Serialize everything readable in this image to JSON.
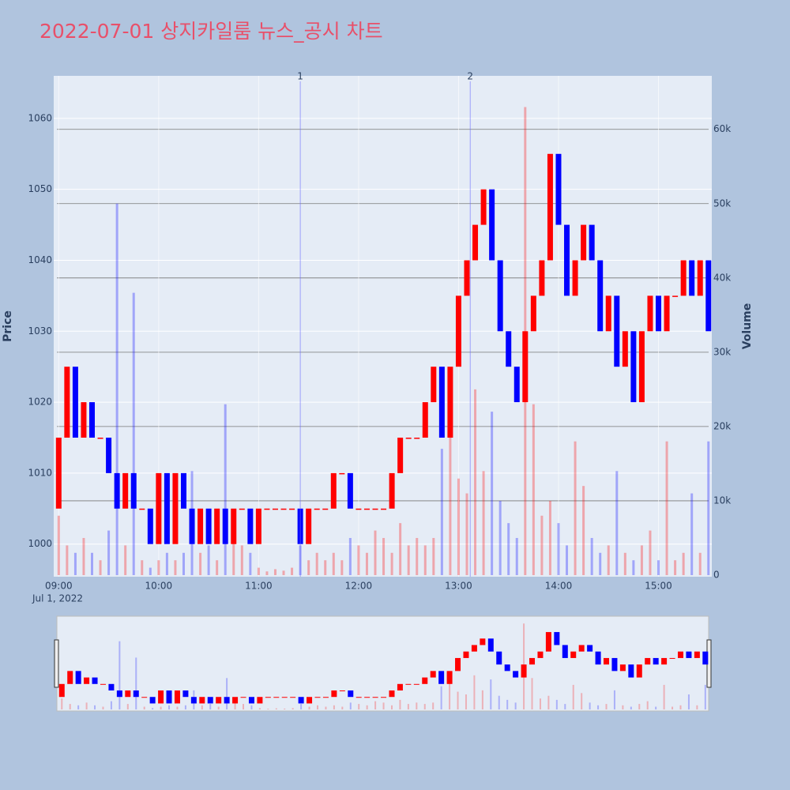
{
  "chart_data": {
    "type": "candlestick",
    "title": "2022-07-01 상지카일룸 뉴스_공시 차트",
    "y_title": "Price",
    "y2_title": "Volume",
    "x_date_label": "Jul 1, 2022",
    "up_color": "red",
    "down_color": "blue",
    "x": [
      "09:00",
      "09:05",
      "09:10",
      "09:15",
      "09:20",
      "09:25",
      "09:30",
      "09:35",
      "09:40",
      "09:45",
      "09:50",
      "09:55",
      "10:00",
      "10:05",
      "10:10",
      "10:15",
      "10:20",
      "10:25",
      "10:30",
      "10:35",
      "10:40",
      "10:45",
      "10:50",
      "10:55",
      "11:00",
      "11:05",
      "11:10",
      "11:15",
      "11:20",
      "11:25",
      "11:30",
      "11:35",
      "11:40",
      "11:45",
      "11:50",
      "11:55",
      "12:00",
      "12:05",
      "12:10",
      "12:15",
      "12:20",
      "12:25",
      "12:30",
      "12:35",
      "12:40",
      "12:45",
      "12:50",
      "12:55",
      "13:00",
      "13:05",
      "13:10",
      "13:15",
      "13:20",
      "13:25",
      "13:30",
      "13:35",
      "13:40",
      "13:45",
      "13:50",
      "13:55",
      "14:00",
      "14:05",
      "14:10",
      "14:15",
      "14:20",
      "14:25",
      "14:30",
      "14:35",
      "14:40",
      "14:45",
      "14:50",
      "14:55",
      "15:00",
      "15:05",
      "15:10",
      "15:15",
      "15:20",
      "15:25",
      "15:30"
    ],
    "open": [
      1005,
      1015,
      1025,
      1015,
      1020,
      1015,
      1015,
      1010,
      1005,
      1010,
      1005,
      1005,
      1000,
      1010,
      1000,
      1010,
      1005,
      1000,
      1005,
      1000,
      1005,
      1000,
      1005,
      1005,
      1000,
      1005,
      1005,
      1005,
      1005,
      1005,
      1000,
      1005,
      1005,
      1005,
      1010,
      1010,
      1005,
      1005,
      1005,
      1005,
      1005,
      1010,
      1015,
      1015,
      1015,
      1020,
      1025,
      1015,
      1025,
      1035,
      1040,
      1045,
      1050,
      1040,
      1030,
      1025,
      1020,
      1030,
      1035,
      1040,
      1055,
      1045,
      1035,
      1040,
      1045,
      1040,
      1030,
      1035,
      1025,
      1030,
      1020,
      1030,
      1035,
      1030,
      1035,
      1035,
      1040,
      1035,
      1040
    ],
    "close": [
      1015,
      1025,
      1015,
      1020,
      1015,
      1015,
      1010,
      1005,
      1010,
      1005,
      1005,
      1000,
      1010,
      1000,
      1010,
      1005,
      1000,
      1005,
      1000,
      1005,
      1000,
      1005,
      1005,
      1000,
      1005,
      1005,
      1005,
      1005,
      1005,
      1000,
      1005,
      1005,
      1005,
      1010,
      1010,
      1005,
      1005,
      1005,
      1005,
      1005,
      1010,
      1015,
      1015,
      1015,
      1020,
      1025,
      1015,
      1025,
      1035,
      1040,
      1045,
      1050,
      1040,
      1030,
      1025,
      1020,
      1030,
      1035,
      1040,
      1055,
      1045,
      1035,
      1040,
      1045,
      1040,
      1030,
      1035,
      1025,
      1030,
      1020,
      1030,
      1035,
      1030,
      1035,
      1035,
      1040,
      1035,
      1040,
      1030
    ],
    "volume": [
      8000,
      4000,
      3000,
      5000,
      3000,
      2000,
      6000,
      50000,
      4000,
      38000,
      2000,
      1000,
      2000,
      3000,
      2000,
      3000,
      14000,
      3000,
      4000,
      2000,
      23000,
      8000,
      4000,
      3000,
      1000,
      500,
      800,
      600,
      1000,
      4000,
      2000,
      3000,
      2000,
      3000,
      2000,
      5000,
      4000,
      3000,
      6000,
      5000,
      3000,
      7000,
      4000,
      5000,
      4000,
      5000,
      17000,
      24000,
      13000,
      11000,
      25000,
      14000,
      22000,
      10000,
      7000,
      5000,
      63000,
      23000,
      8000,
      10000,
      7000,
      4000,
      18000,
      12000,
      5000,
      3000,
      4000,
      14000,
      3000,
      2000,
      4000,
      6000,
      2000,
      18000,
      2000,
      3000,
      11000,
      3000,
      18000
    ],
    "xlim": [
      "08:57",
      "15:32"
    ],
    "xticks": [
      "09:00",
      "10:00",
      "11:00",
      "12:00",
      "13:00",
      "14:00",
      "15:00"
    ],
    "ylim": [
      995.4,
      1066
    ],
    "yticks": [
      1000,
      1010,
      1020,
      1030,
      1040,
      1050,
      1060
    ],
    "y2lim": [
      0,
      67200
    ],
    "y2ticks": [
      0,
      {
        "value": 10000,
        "label": "10k"
      },
      {
        "value": 20000,
        "label": "20k"
      },
      {
        "value": 30000,
        "label": "30k"
      },
      {
        "value": 40000,
        "label": "40k"
      },
      {
        "value": 50000,
        "label": "50k"
      },
      {
        "value": 60000,
        "label": "60k"
      }
    ],
    "annotations": [
      {
        "x": "11:25",
        "text": "1"
      },
      {
        "x": "13:07",
        "text": "2"
      }
    ],
    "grid": true,
    "range_slider": true
  }
}
